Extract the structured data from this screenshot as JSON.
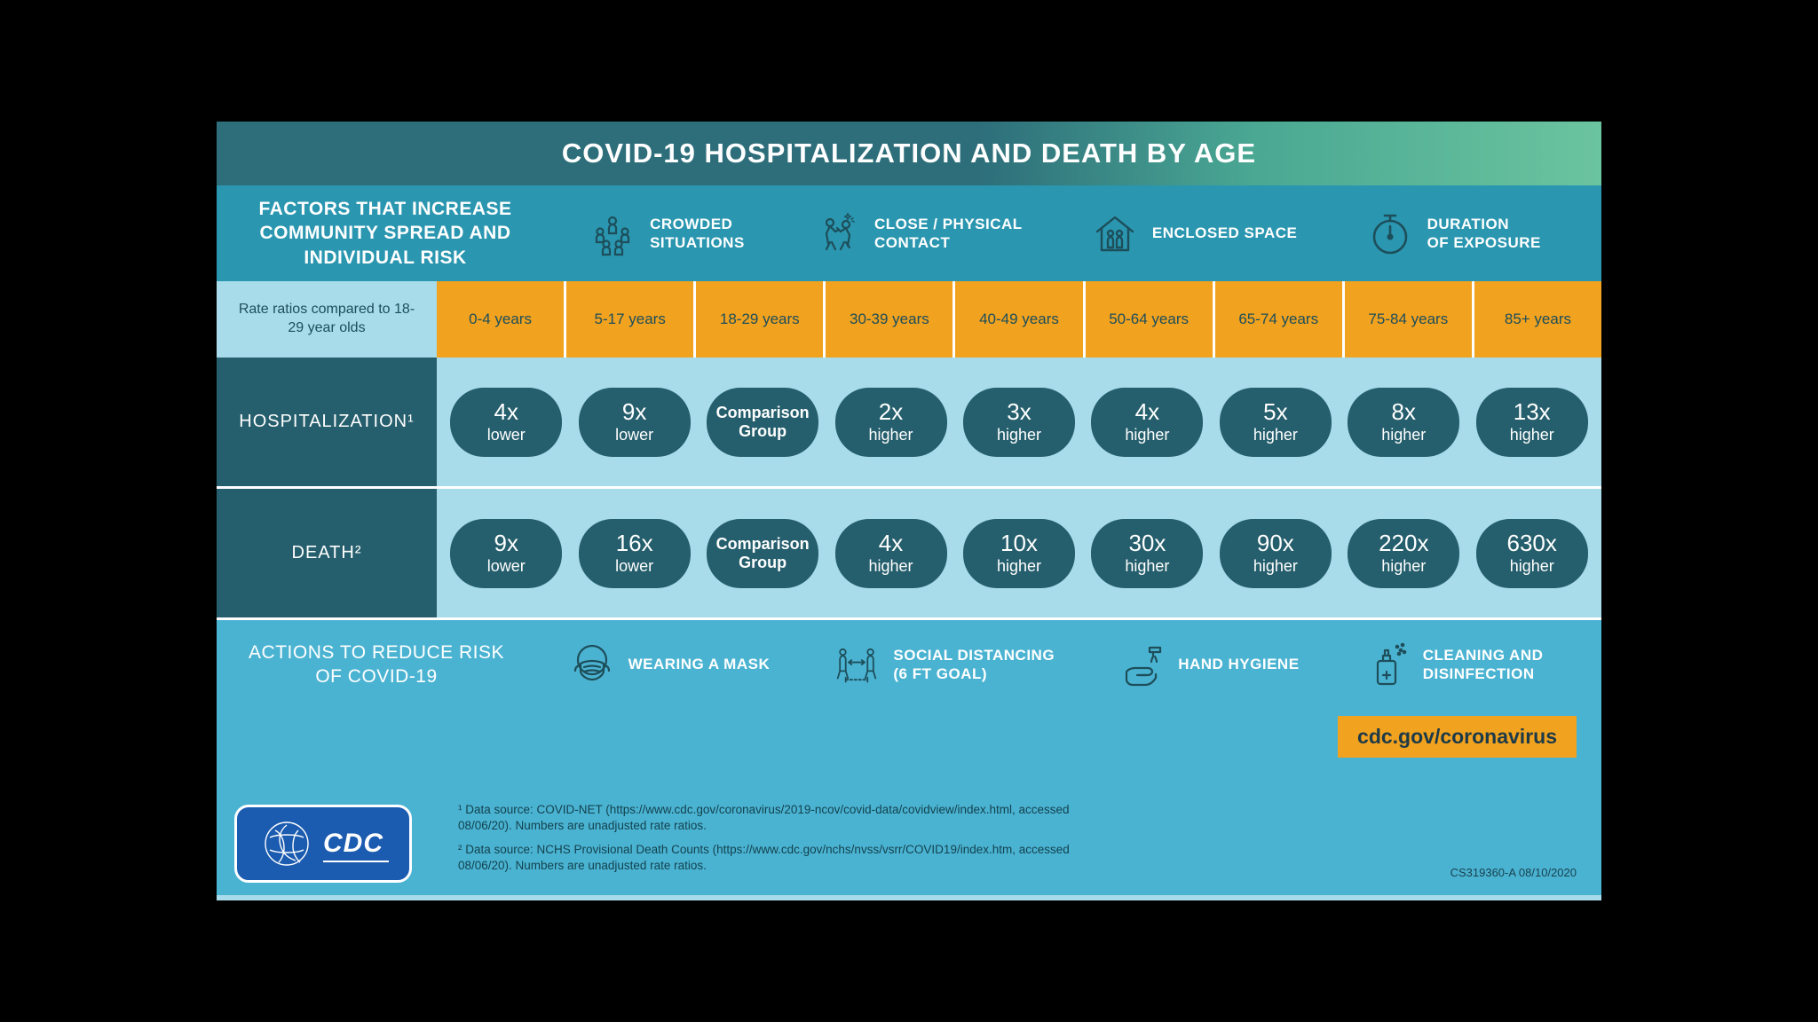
{
  "title": "COVID-19 HOSPITALIZATION AND DEATH BY AGE",
  "colors": {
    "title_gradient_start": "#2d6e7a",
    "title_gradient_mid": "#4aa893",
    "title_gradient_end": "#6bc49f",
    "factors_bg": "#2a96b0",
    "actions_bg": "#4bb3d2",
    "dark_teal": "#255e6c",
    "light_blue": "#a8dcea",
    "orange": "#f1a21f",
    "icon_stroke": "#1d4e5a",
    "cdc_blue": "#1b5bb0",
    "white": "#ffffff"
  },
  "factors": {
    "heading": "FACTORS THAT INCREASE COMMUNITY SPREAD AND INDIVIDUAL RISK",
    "items": [
      {
        "label": "CROWDED\nSITUATIONS",
        "icon": "crowded"
      },
      {
        "label": "CLOSE / PHYSICAL\nCONTACT",
        "icon": "contact"
      },
      {
        "label": "ENCLOSED SPACE",
        "icon": "house"
      },
      {
        "label": "DURATION\nOF EXPOSURE",
        "icon": "stopwatch"
      }
    ]
  },
  "age_header": {
    "row_label": "Rate ratios compared to 18-29 year olds",
    "groups": [
      "0-4 years",
      "5-17 years",
      "18-29 years",
      "30-39 years",
      "40-49 years",
      "50-64 years",
      "65-74 years",
      "75-84 years",
      "85+ years"
    ]
  },
  "rows": [
    {
      "label": "HOSPITALIZATION¹",
      "cells": [
        {
          "v": "4x",
          "d": "lower"
        },
        {
          "v": "9x",
          "d": "lower"
        },
        {
          "v": "Comparison",
          "d": "Group",
          "comp": true
        },
        {
          "v": "2x",
          "d": "higher"
        },
        {
          "v": "3x",
          "d": "higher"
        },
        {
          "v": "4x",
          "d": "higher"
        },
        {
          "v": "5x",
          "d": "higher"
        },
        {
          "v": "8x",
          "d": "higher"
        },
        {
          "v": "13x",
          "d": "higher"
        }
      ]
    },
    {
      "label": "DEATH²",
      "cells": [
        {
          "v": "9x",
          "d": "lower"
        },
        {
          "v": "16x",
          "d": "lower"
        },
        {
          "v": "Comparison",
          "d": "Group",
          "comp": true
        },
        {
          "v": "4x",
          "d": "higher"
        },
        {
          "v": "10x",
          "d": "higher"
        },
        {
          "v": "30x",
          "d": "higher"
        },
        {
          "v": "90x",
          "d": "higher"
        },
        {
          "v": "220x",
          "d": "higher"
        },
        {
          "v": "630x",
          "d": "higher"
        }
      ]
    }
  ],
  "actions": {
    "heading": "ACTIONS TO REDUCE RISK OF COVID-19",
    "items": [
      {
        "label": "WEARING A MASK",
        "icon": "mask"
      },
      {
        "label": "SOCIAL DISTANCING\n(6 FT GOAL)",
        "icon": "distance"
      },
      {
        "label": "HAND HYGIENE",
        "icon": "handwash"
      },
      {
        "label": "CLEANING AND\nDISINFECTION",
        "icon": "spray"
      }
    ]
  },
  "footer": {
    "cdc_label": "CDC",
    "url": "cdc.gov/coronavirus",
    "note1": "¹ Data source: COVID-NET (https://www.cdc.gov/coronavirus/2019-ncov/covid-data/covidview/index.html, accessed 08/06/20). Numbers are unadjusted rate ratios.",
    "note2": "² Data source: NCHS Provisional Death Counts (https://www.cdc.gov/nchs/nvss/vsrr/COVID19/index.htm, accessed 08/06/20). Numbers are unadjusted rate ratios.",
    "docid": "CS319360-A 08/10/2020"
  }
}
